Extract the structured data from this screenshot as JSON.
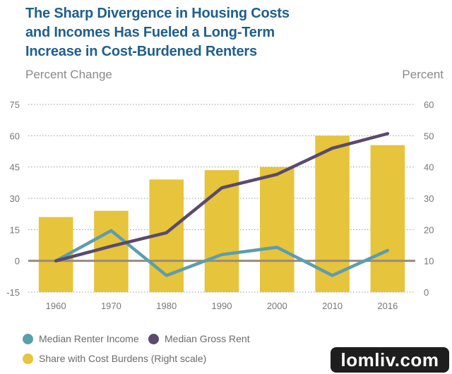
{
  "chart_data": {
    "type": "bar+line",
    "title": "The Sharp Divergence in Housing Costs and Incomes Has Fueled a Long-Term Increase in Cost-Burdened Renters",
    "title_lines": [
      "The Sharp Divergence in Housing Costs",
      "and Incomes Has Fueled a Long-Term",
      "Increase in Cost-Burdened Renters"
    ],
    "ylabel_left": "Percent Change",
    "ylabel_right": "Percent",
    "categories": [
      "1960",
      "1970",
      "1980",
      "1990",
      "2000",
      "2010",
      "2016"
    ],
    "left_ticks": [
      "75",
      "60",
      "45",
      "30",
      "15",
      "0",
      "-15"
    ],
    "right_ticks": [
      "60",
      "50",
      "40",
      "30",
      "20",
      "10",
      "0"
    ],
    "ylim_left": [
      -15,
      75
    ],
    "ylim_right": [
      0,
      60
    ],
    "bars": {
      "name": "Share with Cost Burdens (Right scale)",
      "axis": "right",
      "color": "#e6c43c",
      "values": [
        24,
        26,
        36,
        39,
        40,
        50,
        47
      ]
    },
    "series": [
      {
        "name": "Median Renter Income",
        "axis": "left",
        "color": "#5c9dae",
        "values": [
          0,
          14.5,
          -7,
          3,
          6.5,
          -7,
          5
        ]
      },
      {
        "name": "Median Gross Rent",
        "axis": "left",
        "color": "#5a4a6e",
        "values": [
          0,
          7,
          13.5,
          35,
          41.5,
          54,
          61
        ]
      }
    ],
    "legend_position": "bottom-left"
  },
  "legend": {
    "income": "Median Renter Income",
    "rent": "Median Gross Rent",
    "burden": "Share with Cost Burdens (Right scale)"
  },
  "watermark": {
    "text": "lomliv.com"
  }
}
